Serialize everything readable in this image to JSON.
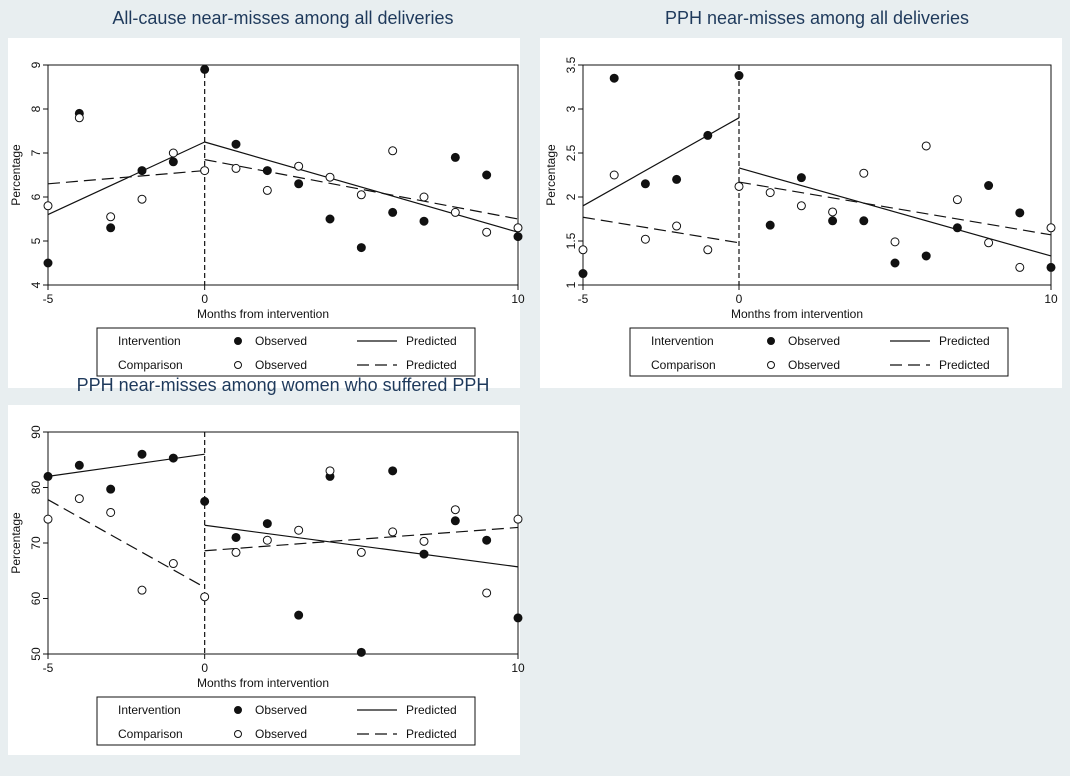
{
  "colors": {
    "background": "#e8eef0",
    "plot_bg": "#ffffff",
    "title": "#1f3a5c",
    "ink": "#111111"
  },
  "legend": {
    "rows": [
      {
        "group": "Intervention",
        "observed": "Observed",
        "predicted": "Predicted",
        "marker": "filled-circle",
        "line": "solid"
      },
      {
        "group": "Comparison",
        "observed": "Observed",
        "predicted": "Predicted",
        "marker": "hollow-circle",
        "line": "dashed"
      }
    ]
  },
  "chart_data": [
    {
      "type": "scatter",
      "title": "All-cause near-misses among all deliveries",
      "xlabel": "Months from intervention",
      "ylabel": "Percentage",
      "xlim": [
        -5,
        10
      ],
      "ylim": [
        4,
        9
      ],
      "xticks": [
        -5,
        0,
        10
      ],
      "yticks": [
        4,
        5,
        6,
        7,
        8,
        9
      ],
      "ytick_labels": [
        "4",
        "5",
        "6",
        "7",
        "8",
        "9"
      ],
      "intervention_line_x": 0,
      "series": [
        {
          "name": "Intervention Observed",
          "style": "filled",
          "points": [
            [
              -5,
              4.5
            ],
            [
              -4,
              7.9
            ],
            [
              -3,
              5.3
            ],
            [
              -2,
              6.6
            ],
            [
              -1,
              6.8
            ],
            [
              0,
              8.9
            ],
            [
              1,
              7.2
            ],
            [
              2,
              6.6
            ],
            [
              3,
              6.3
            ],
            [
              4,
              5.5
            ],
            [
              5,
              4.85
            ],
            [
              6,
              5.65
            ],
            [
              7,
              5.45
            ],
            [
              8,
              6.9
            ],
            [
              9,
              6.5
            ],
            [
              10,
              5.1
            ]
          ]
        },
        {
          "name": "Comparison Observed",
          "style": "hollow",
          "points": [
            [
              -5,
              5.8
            ],
            [
              -4,
              7.8
            ],
            [
              -3,
              5.55
            ],
            [
              -2,
              5.95
            ],
            [
              -1,
              7.0
            ],
            [
              0,
              6.6
            ],
            [
              1,
              6.65
            ],
            [
              2,
              6.15
            ],
            [
              3,
              6.7
            ],
            [
              4,
              6.45
            ],
            [
              5,
              6.05
            ],
            [
              6,
              7.05
            ],
            [
              7,
              6.0
            ],
            [
              8,
              5.65
            ],
            [
              9,
              5.2
            ],
            [
              10,
              5.3
            ]
          ]
        },
        {
          "name": "Intervention Predicted",
          "style": "solid",
          "segments": [
            [
              [
                -5,
                5.6
              ],
              [
                0,
                7.25
              ]
            ],
            [
              [
                0,
                7.25
              ],
              [
                10,
                5.2
              ]
            ]
          ]
        },
        {
          "name": "Comparison Predicted",
          "style": "dashed",
          "segments": [
            [
              [
                -5,
                6.3
              ],
              [
                0,
                6.6
              ]
            ],
            [
              [
                0,
                6.85
              ],
              [
                10,
                5.5
              ]
            ]
          ]
        }
      ]
    },
    {
      "type": "scatter",
      "title": "PPH near-misses among all deliveries",
      "xlabel": "Months from intervention",
      "ylabel": "Percentage",
      "xlim": [
        -5,
        10
      ],
      "ylim": [
        1,
        3.5
      ],
      "xticks": [
        -5,
        0,
        10
      ],
      "yticks": [
        1,
        1.5,
        2,
        2.5,
        3,
        3.5
      ],
      "ytick_labels": [
        "1",
        "1.5",
        "2",
        "2.5",
        "3",
        "3.5"
      ],
      "intervention_line_x": 0,
      "series": [
        {
          "name": "Intervention Observed",
          "style": "filled",
          "points": [
            [
              -5,
              1.13
            ],
            [
              -4,
              3.35
            ],
            [
              -3,
              2.15
            ],
            [
              -2,
              2.2
            ],
            [
              -1,
              2.7
            ],
            [
              0,
              3.38
            ],
            [
              1,
              1.68
            ],
            [
              2,
              2.22
            ],
            [
              3,
              1.73
            ],
            [
              4,
              1.73
            ],
            [
              5,
              1.25
            ],
            [
              6,
              1.33
            ],
            [
              7,
              1.65
            ],
            [
              8,
              2.13
            ],
            [
              9,
              1.82
            ],
            [
              10,
              1.2
            ]
          ]
        },
        {
          "name": "Comparison Observed",
          "style": "hollow",
          "points": [
            [
              -5,
              1.4
            ],
            [
              -4,
              2.25
            ],
            [
              -3,
              1.52
            ],
            [
              -2,
              1.67
            ],
            [
              -1,
              1.4
            ],
            [
              0,
              2.12
            ],
            [
              1,
              2.05
            ],
            [
              2,
              1.9
            ],
            [
              3,
              1.83
            ],
            [
              4,
              2.27
            ],
            [
              5,
              1.49
            ],
            [
              6,
              2.58
            ],
            [
              7,
              1.97
            ],
            [
              8,
              1.48
            ],
            [
              9,
              1.2
            ],
            [
              10,
              1.65
            ]
          ]
        },
        {
          "name": "Intervention Predicted",
          "style": "solid",
          "segments": [
            [
              [
                -5,
                1.9
              ],
              [
                0,
                2.9
              ]
            ],
            [
              [
                0,
                2.33
              ],
              [
                10,
                1.33
              ]
            ]
          ]
        },
        {
          "name": "Comparison Predicted",
          "style": "dashed",
          "segments": [
            [
              [
                -5,
                1.77
              ],
              [
                0,
                1.48
              ]
            ],
            [
              [
                0,
                2.17
              ],
              [
                10,
                1.57
              ]
            ]
          ]
        }
      ]
    },
    {
      "type": "scatter",
      "title": "PPH near-misses among women who suffered PPH",
      "xlabel": "Months from intervention",
      "ylabel": "Percentage",
      "xlim": [
        -5,
        10
      ],
      "ylim": [
        50,
        90
      ],
      "xticks": [
        -5,
        0,
        10
      ],
      "yticks": [
        50,
        60,
        70,
        80,
        90
      ],
      "ytick_labels": [
        "50",
        "60",
        "70",
        "80",
        "90"
      ],
      "intervention_line_x": 0,
      "series": [
        {
          "name": "Intervention Observed",
          "style": "filled",
          "points": [
            [
              -5,
              82
            ],
            [
              -4,
              84
            ],
            [
              -3,
              79.7
            ],
            [
              -2,
              86
            ],
            [
              -1,
              85.3
            ],
            [
              0,
              77.5
            ],
            [
              1,
              71
            ],
            [
              2,
              73.5
            ],
            [
              3,
              57
            ],
            [
              4,
              82
            ],
            [
              5,
              50.3
            ],
            [
              6,
              83
            ],
            [
              7,
              68
            ],
            [
              8,
              74
            ],
            [
              9,
              70.5
            ],
            [
              10,
              56.5
            ]
          ]
        },
        {
          "name": "Comparison Observed",
          "style": "hollow",
          "points": [
            [
              -5,
              74.3
            ],
            [
              -4,
              78
            ],
            [
              -3,
              75.5
            ],
            [
              -2,
              61.5
            ],
            [
              -1,
              66.3
            ],
            [
              0,
              60.3
            ],
            [
              1,
              68.3
            ],
            [
              2,
              70.5
            ],
            [
              3,
              72.3
            ],
            [
              4,
              83
            ],
            [
              5,
              68.3
            ],
            [
              6,
              72
            ],
            [
              7,
              70.3
            ],
            [
              8,
              76
            ],
            [
              9,
              61
            ],
            [
              10,
              74.3
            ]
          ]
        },
        {
          "name": "Intervention Predicted",
          "style": "solid",
          "segments": [
            [
              [
                -5,
                82
              ],
              [
                0,
                86
              ]
            ],
            [
              [
                0,
                73.2
              ],
              [
                10,
                65.7
              ]
            ]
          ]
        },
        {
          "name": "Comparison Predicted",
          "style": "dashed",
          "segments": [
            [
              [
                -5,
                77.8
              ],
              [
                0,
                62
              ]
            ],
            [
              [
                0,
                68.6
              ],
              [
                10,
                72.8
              ]
            ]
          ]
        }
      ]
    }
  ]
}
